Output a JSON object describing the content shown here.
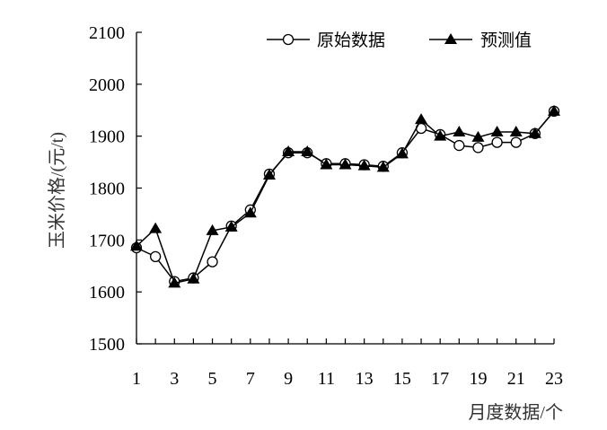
{
  "chart_data": {
    "type": "line",
    "title": "",
    "xlabel": "月度数据/个",
    "ylabel": "玉米价格/(元/t)",
    "ylim": [
      1500,
      2100
    ],
    "xlim": [
      1,
      23
    ],
    "y_ticks": [
      "1500",
      "1600",
      "1700",
      "1800",
      "1900",
      "2000",
      "2100"
    ],
    "x_ticks": [
      "1",
      "3",
      "5",
      "7",
      "9",
      "11",
      "13",
      "15",
      "17",
      "19",
      "21",
      "23"
    ],
    "legend_position": "top-right",
    "grid": false,
    "x": [
      1,
      2,
      3,
      4,
      5,
      6,
      7,
      8,
      9,
      10,
      11,
      12,
      13,
      14,
      15,
      16,
      17,
      18,
      19,
      20,
      21,
      22,
      23
    ],
    "series": [
      {
        "name": "原始数据",
        "marker": "open-circle",
        "color": "#000000",
        "values": [
          1685,
          1668,
          1620,
          1627,
          1658,
          1727,
          1758,
          1827,
          1868,
          1868,
          1847,
          1847,
          1845,
          1842,
          1868,
          1915,
          1903,
          1882,
          1878,
          1888,
          1888,
          1905,
          1948
        ]
      },
      {
        "name": "预测值",
        "marker": "filled-triangle",
        "color": "#000000",
        "values": [
          1688,
          1722,
          1617,
          1625,
          1718,
          1725,
          1752,
          1825,
          1870,
          1870,
          1845,
          1845,
          1843,
          1840,
          1866,
          1932,
          1900,
          1908,
          1898,
          1908,
          1908,
          1905,
          1948
        ]
      }
    ]
  }
}
